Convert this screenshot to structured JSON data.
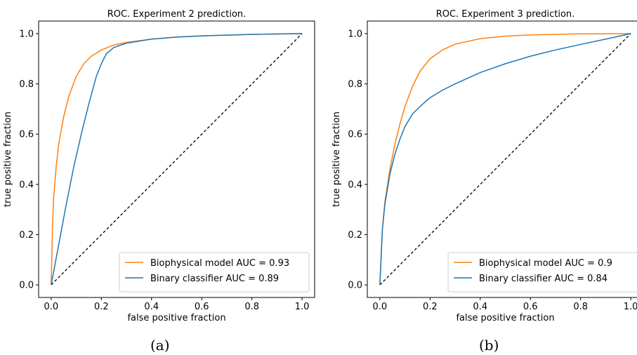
{
  "charts": [
    {
      "caption": "(a)",
      "chart_data": {
        "type": "line",
        "title": "ROC. Experiment 2 prediction.",
        "xlabel": "false positive fraction",
        "ylabel": "true positive fraction",
        "xlim": [
          -0.05,
          1.05
        ],
        "ylim": [
          -0.05,
          1.05
        ],
        "xticks": [
          "0.0",
          "0.2",
          "0.4",
          "0.6",
          "0.8",
          "1.0"
        ],
        "yticks": [
          "0.0",
          "0.2",
          "0.4",
          "0.6",
          "0.8",
          "1.0"
        ],
        "legend_position": "lower-right",
        "series": [
          {
            "name": "Biophysical model AUC = 0.93",
            "color": "#ff7f0e",
            "x": [
              0,
              0.005,
              0.01,
              0.02,
              0.03,
              0.05,
              0.07,
              0.1,
              0.13,
              0.16,
              0.2,
              0.25,
              0.3,
              0.4,
              0.5,
              0.6,
              0.8,
              1.0
            ],
            "y": [
              0,
              0.22,
              0.35,
              0.47,
              0.56,
              0.67,
              0.75,
              0.83,
              0.88,
              0.91,
              0.935,
              0.955,
              0.965,
              0.978,
              0.986,
              0.991,
              0.997,
              1.0
            ]
          },
          {
            "name": "Binary classifier AUC = 0.89",
            "color": "#1f77b4",
            "x": [
              0,
              0.03,
              0.06,
              0.09,
              0.12,
              0.15,
              0.18,
              0.2,
              0.22,
              0.25,
              0.3,
              0.4,
              0.5,
              0.6,
              0.8,
              1.0
            ],
            "y": [
              0,
              0.16,
              0.32,
              0.47,
              0.6,
              0.72,
              0.83,
              0.88,
              0.92,
              0.945,
              0.962,
              0.978,
              0.986,
              0.991,
              0.997,
              1.0
            ]
          }
        ],
        "reference_line": {
          "style": "dashed",
          "color": "#000000",
          "x": [
            0,
            1
          ],
          "y": [
            0,
            1
          ]
        }
      }
    },
    {
      "caption": "(b)",
      "chart_data": {
        "type": "line",
        "title": "ROC. Experiment 3 prediction.",
        "xlabel": "false positive fraction",
        "ylabel": "true positive fraction",
        "xlim": [
          -0.05,
          1.05
        ],
        "ylim": [
          -0.05,
          1.05
        ],
        "xticks": [
          "0.0",
          "0.2",
          "0.4",
          "0.6",
          "0.8",
          "1.0"
        ],
        "yticks": [
          "0.0",
          "0.2",
          "0.4",
          "0.6",
          "0.8",
          "1.0"
        ],
        "legend_position": "lower-right",
        "series": [
          {
            "name": "Biophysical model AUC = 0.9",
            "color": "#ff7f0e",
            "x": [
              0,
              0.01,
              0.02,
              0.04,
              0.06,
              0.08,
              0.1,
              0.13,
              0.16,
              0.2,
              0.25,
              0.3,
              0.4,
              0.5,
              0.6,
              0.8,
              1.0
            ],
            "y": [
              0,
              0.22,
              0.33,
              0.46,
              0.56,
              0.64,
              0.71,
              0.79,
              0.85,
              0.9,
              0.935,
              0.958,
              0.98,
              0.99,
              0.995,
              0.999,
              1.0
            ]
          },
          {
            "name": "Binary classifier AUC = 0.84",
            "color": "#1f77b4",
            "x": [
              0,
              0.01,
              0.02,
              0.04,
              0.06,
              0.08,
              0.1,
              0.13,
              0.16,
              0.2,
              0.25,
              0.3,
              0.4,
              0.5,
              0.6,
              0.7,
              0.8,
              0.9,
              1.0
            ],
            "y": [
              0,
              0.22,
              0.32,
              0.44,
              0.52,
              0.58,
              0.63,
              0.68,
              0.71,
              0.745,
              0.775,
              0.8,
              0.845,
              0.88,
              0.91,
              0.935,
              0.957,
              0.978,
              1.0
            ]
          }
        ],
        "reference_line": {
          "style": "dashed",
          "color": "#000000",
          "x": [
            0,
            1
          ],
          "y": [
            0,
            1
          ]
        }
      }
    }
  ]
}
